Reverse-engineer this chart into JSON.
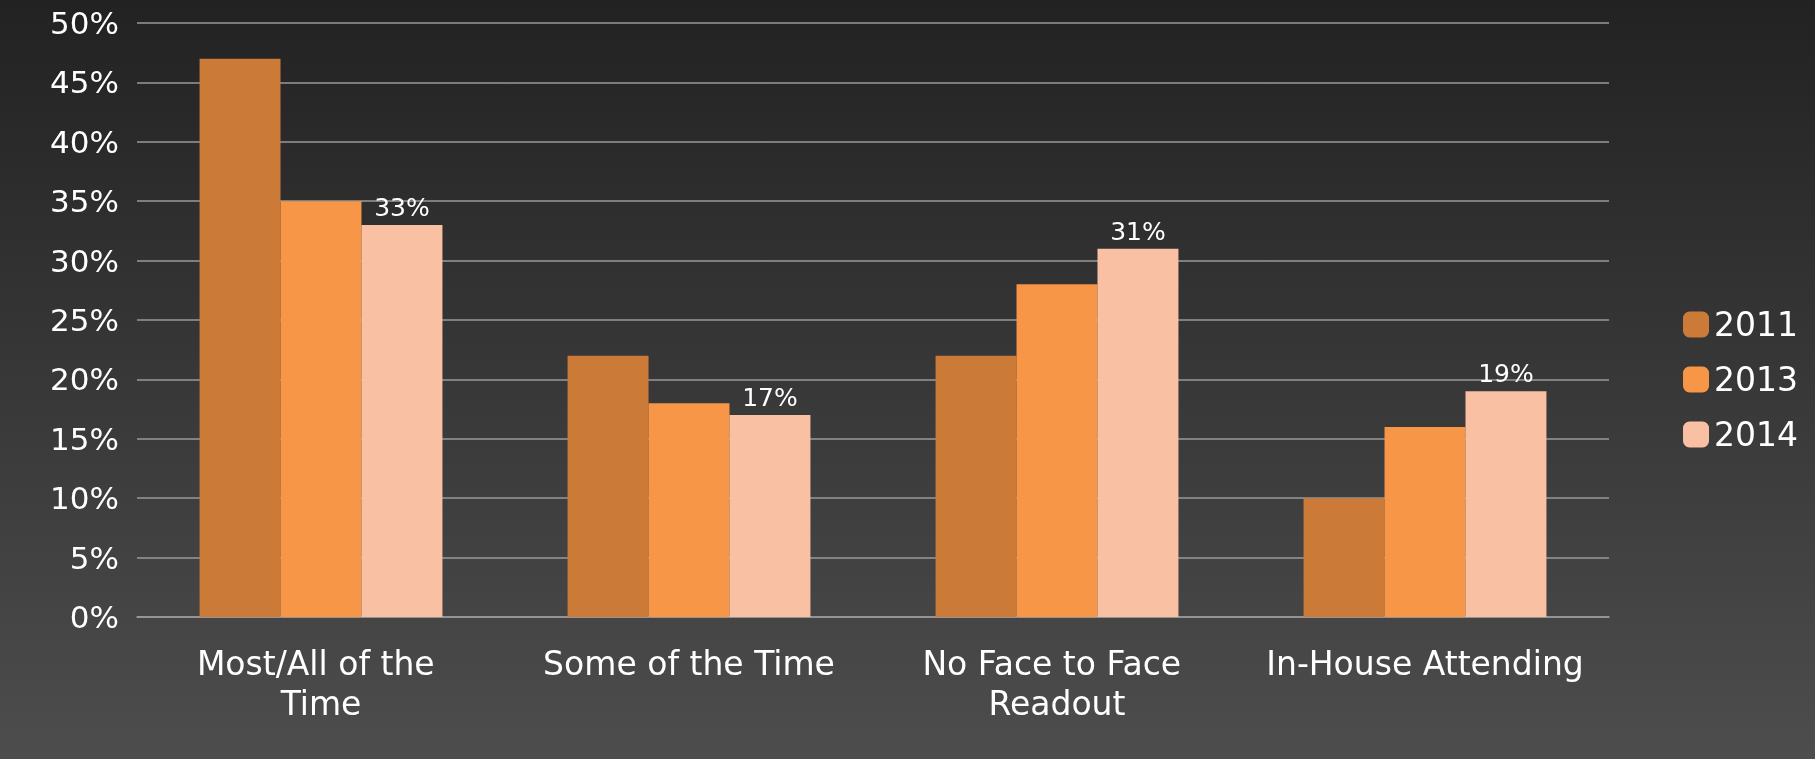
{
  "chart_data": {
    "type": "bar",
    "categories": [
      "Most/All of the Time",
      "Some of the Time",
      "No Face to Face Readout",
      "In-House Attending"
    ],
    "series": [
      {
        "name": "2011",
        "color": "#cc7a38",
        "values": [
          47,
          22,
          22,
          10
        ]
      },
      {
        "name": "2013",
        "color": "#f79646",
        "values": [
          35,
          18,
          28,
          16
        ]
      },
      {
        "name": "2014",
        "color": "#fac0a4",
        "values": [
          33,
          17,
          31,
          19
        ],
        "value_labels": [
          "33%",
          "17%",
          "31%",
          "19%"
        ]
      }
    ],
    "ylim": [
      0,
      50
    ],
    "yticks": [
      {
        "value": 0,
        "label": "0%"
      },
      {
        "value": 5,
        "label": "5%"
      },
      {
        "value": 10,
        "label": "10%"
      },
      {
        "value": 15,
        "label": "15%"
      },
      {
        "value": 20,
        "label": "20%"
      },
      {
        "value": 25,
        "label": "25%"
      },
      {
        "value": 30,
        "label": "30%"
      },
      {
        "value": 35,
        "label": "35%"
      },
      {
        "value": 40,
        "label": "40%"
      },
      {
        "value": 45,
        "label": "45%"
      },
      {
        "value": 50,
        "label": "50%"
      }
    ],
    "grid": "y",
    "legend": "right"
  }
}
